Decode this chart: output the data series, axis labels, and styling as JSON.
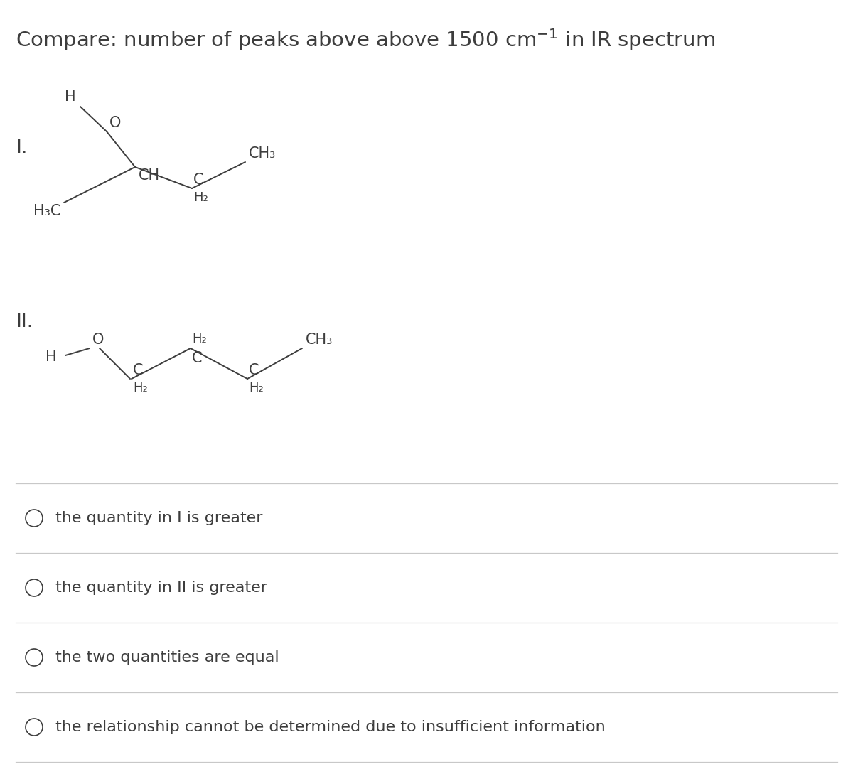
{
  "bg_color": "#ffffff",
  "text_color": "#3d3d3d",
  "line_color": "#c8c8c8",
  "choices": [
    "the quantity in I is greater",
    "the quantity in II is greater",
    "the two quantities are equal",
    "the relationship cannot be determined due to insufficient information"
  ],
  "font_size_title": 21,
  "font_size_label": 19,
  "font_size_choice": 16,
  "font_size_chem": 15,
  "font_size_sub": 12
}
